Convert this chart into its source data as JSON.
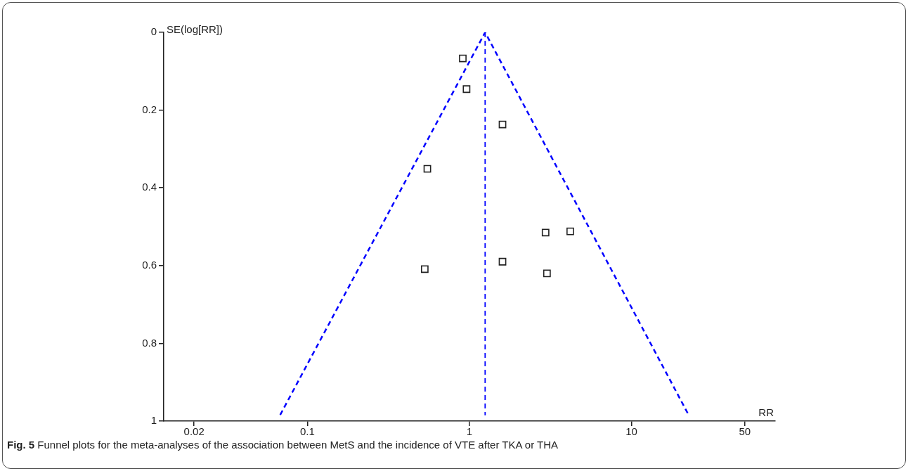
{
  "chart_data": {
    "type": "scatter",
    "xlabel": "RR",
    "ylabel": "SE(log[RR])",
    "log": "x",
    "xlim": [
      0.013,
      77
    ],
    "xticks": [
      0.02,
      0.1,
      1,
      10,
      50
    ],
    "ylim": [
      1,
      0
    ],
    "yticks": [
      0,
      0.2,
      0.4,
      0.6,
      0.8,
      1
    ],
    "grid": false,
    "legend": false,
    "annotations": [
      "Fig. 5 Funnel plots for the meta-analyses of the association between MetS and the incidence of VTE after TKA or THA"
    ],
    "series": [
      {
        "type": "line",
        "x": [
          0.068,
          1.25,
          22.5
        ],
        "values": [
          0.984,
          0,
          0.984
        ],
        "color": "#0000ff",
        "line_style": "dashed",
        "marker": "none"
      },
      {
        "type": "line",
        "x": [
          1.25,
          1.25
        ],
        "values": [
          0,
          0.985
        ],
        "color": "#0000ff",
        "line_style": "dashed",
        "marker": "none"
      },
      {
        "type": "scatter",
        "x": [
          0.91,
          0.96,
          1.6,
          0.55,
          2.95,
          4.19,
          0.53,
          1.6,
          3.01
        ],
        "values": [
          0.067,
          0.146,
          0.237,
          0.351,
          0.515,
          0.512,
          0.609,
          0.59,
          0.62
        ],
        "color": "#222222",
        "marker": "square"
      }
    ]
  }
}
